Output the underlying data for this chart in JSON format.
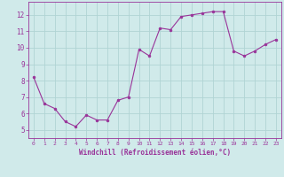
{
  "x": [
    0,
    1,
    2,
    3,
    4,
    5,
    6,
    7,
    8,
    9,
    10,
    11,
    12,
    13,
    14,
    15,
    16,
    17,
    18,
    19,
    20,
    21,
    22,
    23
  ],
  "y": [
    8.2,
    6.6,
    6.3,
    5.5,
    5.2,
    5.9,
    5.6,
    5.6,
    6.8,
    7.0,
    9.9,
    9.5,
    11.2,
    11.1,
    11.9,
    12.0,
    12.1,
    12.2,
    12.2,
    9.8,
    9.5,
    9.8,
    10.2,
    10.5
  ],
  "line_color": "#993399",
  "marker_color": "#993399",
  "bg_color": "#d0eaea",
  "grid_color": "#b0d4d4",
  "xlabel": "Windchill (Refroidissement éolien,°C)",
  "xlabel_color": "#993399",
  "xlim": [
    -0.5,
    23.5
  ],
  "ylim": [
    4.5,
    12.8
  ],
  "yticks": [
    5,
    6,
    7,
    8,
    9,
    10,
    11,
    12
  ],
  "xticks": [
    0,
    1,
    2,
    3,
    4,
    5,
    6,
    7,
    8,
    9,
    10,
    11,
    12,
    13,
    14,
    15,
    16,
    17,
    18,
    19,
    20,
    21,
    22,
    23
  ],
  "tick_color": "#993399",
  "figsize": [
    3.2,
    2.0
  ],
  "dpi": 100
}
